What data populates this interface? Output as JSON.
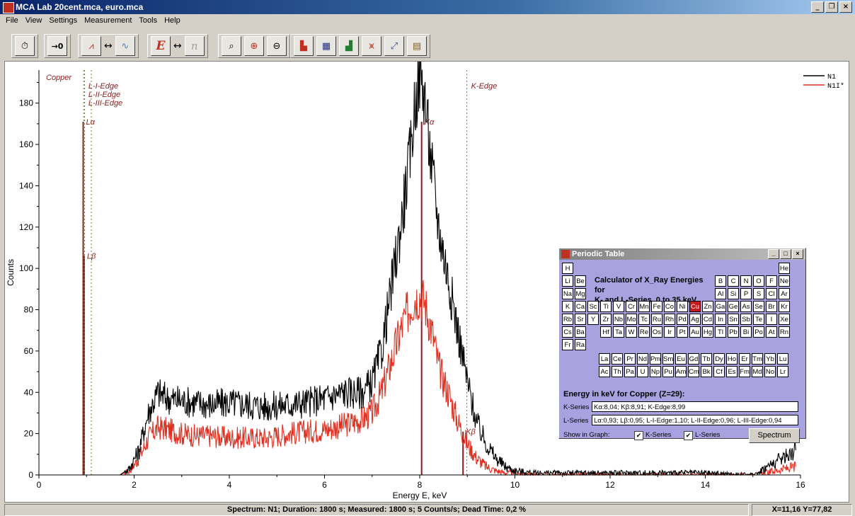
{
  "window": {
    "title": "MCA Lab    20cent.mca, euro.mca",
    "min": "_",
    "restore": "❐",
    "close": "×"
  },
  "menu": [
    "File",
    "View",
    "Settings",
    "Measurement",
    "Tools",
    "Help"
  ],
  "toolbar": {
    "groups": [
      {
        "buttons": [
          {
            "name": "stopwatch-icon",
            "glyph": "⏱"
          }
        ]
      },
      {
        "buttons": [
          {
            "name": "zero-offset-icon",
            "glyph": "→0"
          }
        ]
      },
      {
        "buttons": [
          {
            "name": "peak-view-icon",
            "glyph": "⩘"
          },
          {
            "name": "swap-icon",
            "glyph": "↔"
          },
          {
            "name": "smooth-view-icon",
            "glyph": "∿"
          }
        ]
      },
      {
        "buttons": [
          {
            "name": "energy-axis-icon",
            "glyph": "E"
          },
          {
            "name": "swap-icon",
            "glyph": "↔"
          },
          {
            "name": "channel-axis-icon",
            "glyph": "n"
          }
        ]
      },
      {
        "buttons": [
          {
            "name": "zoom-fit-icon",
            "glyph": "⌕"
          },
          {
            "name": "zoom-in-icon",
            "glyph": "⊕"
          },
          {
            "name": "zoom-out-icon",
            "glyph": "⊖"
          }
        ]
      },
      {
        "buttons": [
          {
            "name": "spectrum-tool-1-icon",
            "glyph": "▙"
          },
          {
            "name": "spectrum-tool-2-icon",
            "glyph": "▦"
          },
          {
            "name": "spectrum-tool-3-icon",
            "glyph": "▟"
          },
          {
            "name": "spectrum-tool-4-icon",
            "glyph": "⩙"
          },
          {
            "name": "spectrum-tool-5-icon",
            "glyph": "⤢"
          },
          {
            "name": "spectrum-tool-6-icon",
            "glyph": "▤"
          }
        ]
      }
    ]
  },
  "chart_data": {
    "type": "line",
    "xlabel": "Energy E, keV",
    "ylabel": "Counts",
    "xlim": [
      0,
      16
    ],
    "ylim": [
      0,
      196
    ],
    "xticks": [
      0,
      2,
      4,
      6,
      8,
      10,
      12,
      14,
      16
    ],
    "yticks": [
      0,
      20,
      40,
      60,
      80,
      100,
      120,
      140,
      160,
      180
    ],
    "legend_position": "top-right",
    "series": [
      {
        "name": "N1",
        "color": "#000000",
        "x": [
          1.7,
          1.9,
          2.1,
          2.3,
          2.5,
          2.7,
          3.0,
          3.3,
          3.6,
          4.0,
          4.4,
          4.8,
          5.2,
          5.6,
          6.0,
          6.4,
          6.8,
          7.0,
          7.2,
          7.4,
          7.6,
          7.8,
          7.9,
          8.0,
          8.1,
          8.2,
          8.3,
          8.4,
          8.6,
          8.8,
          9.0,
          9.2,
          9.4,
          9.6,
          9.8,
          10.0,
          10.4,
          11.0,
          12.0,
          13.0,
          14.0,
          15.0,
          15.9
        ],
        "y": [
          0,
          3,
          12,
          30,
          40,
          37,
          36,
          35,
          34,
          35,
          34,
          33,
          34,
          35,
          37,
          40,
          40,
          45,
          60,
          90,
          120,
          155,
          180,
          193,
          185,
          160,
          140,
          120,
          95,
          70,
          45,
          25,
          15,
          8,
          4,
          2,
          1,
          1,
          1,
          1,
          1,
          0,
          12
        ]
      },
      {
        "name": "N1I*",
        "color": "#e03020",
        "x": [
          1.7,
          1.9,
          2.1,
          2.3,
          2.5,
          2.7,
          3.0,
          3.3,
          3.6,
          4.0,
          4.4,
          4.8,
          5.2,
          5.6,
          6.0,
          6.4,
          6.8,
          7.0,
          7.2,
          7.4,
          7.6,
          7.8,
          7.9,
          8.0,
          8.1,
          8.2,
          8.3,
          8.4,
          8.6,
          8.8,
          9.0,
          9.2,
          9.4,
          9.6,
          9.8,
          10.0,
          10.4,
          11.0,
          12.0,
          13.0,
          14.0,
          15.0,
          15.9
        ],
        "y": [
          0,
          2,
          8,
          18,
          23,
          22,
          20,
          19,
          19,
          18,
          18,
          18,
          20,
          21,
          22,
          24,
          27,
          30,
          40,
          55,
          70,
          82,
          86,
          87,
          84,
          75,
          65,
          52,
          40,
          26,
          15,
          8,
          4,
          2,
          1,
          1,
          0,
          0,
          0,
          0,
          0,
          0,
          4
        ]
      }
    ],
    "markers": [
      {
        "label": "Lα",
        "x": 0.93,
        "y": 171,
        "kind": "line"
      },
      {
        "label": "Lβ",
        "x": 0.95,
        "y": 106,
        "kind": "line"
      },
      {
        "label": "L-I-Edge",
        "x": 1.1,
        "kind": "edge"
      },
      {
        "label": "L-II-Edge",
        "x": 0.96,
        "kind": "edge"
      },
      {
        "label": "L-III-Edge",
        "x": 0.94,
        "kind": "edge"
      },
      {
        "label": "Kα",
        "x": 8.04,
        "y": 171,
        "kind": "line"
      },
      {
        "label": "Kβ",
        "x": 8.91,
        "y": 21,
        "kind": "line"
      },
      {
        "label": "K-Edge",
        "x": 8.99,
        "kind": "edge"
      }
    ],
    "element_label": "Copper"
  },
  "status": {
    "left": "Spectrum: N1; Duration: 1800 s; Measured: 1800 s; 5 Counts/s; Dead Time: 0,2 %",
    "right": "X=11,16  Y=77,82"
  },
  "periodic": {
    "title": "Periodic Table",
    "heading_line1": "Calculator of X_Ray Energies for",
    "heading_line2": "K- and L-Series, 0 to 35 keV",
    "selected": "Cu",
    "rows": [
      [
        "H",
        "",
        "",
        "",
        "",
        "",
        "",
        "",
        "",
        "",
        "",
        "",
        "",
        "",
        "",
        "",
        "",
        "He"
      ],
      [
        "Li",
        "Be",
        "",
        "",
        "",
        "",
        "",
        "",
        "",
        "",
        "",
        "",
        "B",
        "C",
        "N",
        "O",
        "F",
        "Ne"
      ],
      [
        "Na",
        "Mg",
        "",
        "",
        "",
        "",
        "",
        "",
        "",
        "",
        "",
        "",
        "Al",
        "Si",
        "P",
        "S",
        "Cl",
        "Ar"
      ],
      [
        "K",
        "Ca",
        "Sc",
        "Ti",
        "V",
        "Cr",
        "Mn",
        "Fe",
        "Co",
        "Ni",
        "Cu",
        "Zn",
        "Ga",
        "Ge",
        "As",
        "Se",
        "Br",
        "Kr"
      ],
      [
        "Rb",
        "Sr",
        "Y",
        "Zr",
        "Nb",
        "Mo",
        "Tc",
        "Ru",
        "Rh",
        "Pd",
        "Ag",
        "Cd",
        "In",
        "Sn",
        "Sb",
        "Te",
        "I",
        "Xe"
      ],
      [
        "Cs",
        "Ba",
        "",
        "Hf",
        "Ta",
        "W",
        "Re",
        "Os",
        "Ir",
        "Pt",
        "Au",
        "Hg",
        "Tl",
        "Pb",
        "Bi",
        "Po",
        "At",
        "Rn"
      ],
      [
        "Fr",
        "Ra",
        "",
        "",
        "",
        "",
        "",
        "",
        "",
        "",
        "",
        "",
        "",
        "",
        "",
        "",
        "",
        ""
      ]
    ],
    "lanthanides": [
      "La",
      "Ce",
      "Pr",
      "Nd",
      "Pm",
      "Sm",
      "Eu",
      "Gd",
      "Tb",
      "Dy",
      "Ho",
      "Er",
      "Tm",
      "Yb",
      "Lu"
    ],
    "actinides": [
      "Ac",
      "Th",
      "Pa",
      "U",
      "Np",
      "Pu",
      "Am",
      "Cm",
      "Bk",
      "Cf",
      "Es",
      "Fm",
      "Md",
      "No",
      "Lr"
    ],
    "energy_heading": "Energy in keV for Copper (Z=29):",
    "kseries_label": "K-Series",
    "kseries_value": "Kα:8,04; Kβ:8,91; K-Edge:8,99",
    "lseries_label": "L-Series",
    "lseries_value": "Lα:0,93; Lβ:0,95; L-I-Edge:1,10; L-II-Edge:0,96; L-III-Edge:0,94",
    "show_label": "Show in Graph:",
    "k_check": "K-Series",
    "l_check": "L-Series",
    "spectrum_button": "Spectrum",
    "check_mark": "✔"
  }
}
